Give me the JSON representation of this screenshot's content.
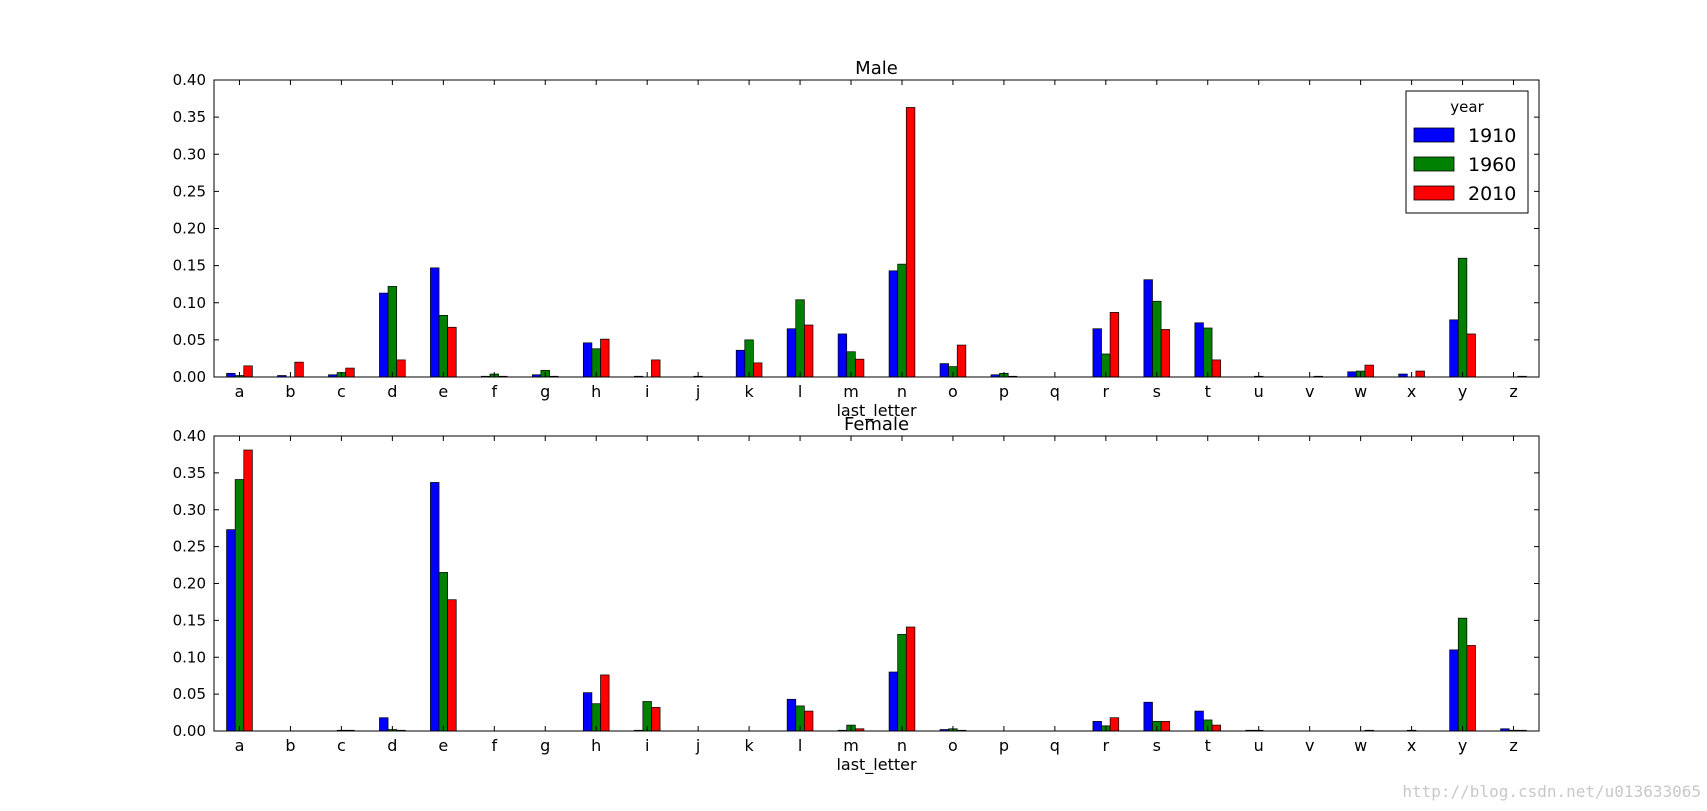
{
  "watermark": "http://blog.csdn.net/u013633065",
  "legend": {
    "title": "year",
    "placement": "upper right",
    "entries": [
      "1910",
      "1960",
      "2010"
    ]
  },
  "chart_data": [
    {
      "type": "bar",
      "title": "Male",
      "xlabel": "last_letter",
      "ylabel": "",
      "ylim": [
        0,
        0.4
      ],
      "yticks": [
        "0.00",
        "0.05",
        "0.10",
        "0.15",
        "0.20",
        "0.25",
        "0.30",
        "0.35",
        "0.40"
      ],
      "grid": false,
      "categories": [
        "a",
        "b",
        "c",
        "d",
        "e",
        "f",
        "g",
        "h",
        "i",
        "j",
        "k",
        "l",
        "m",
        "n",
        "o",
        "p",
        "q",
        "r",
        "s",
        "t",
        "u",
        "v",
        "w",
        "x",
        "y",
        "z"
      ],
      "series": [
        {
          "name": "1910",
          "color": "#0000ff",
          "values": [
            0.005,
            0.002,
            0.003,
            0.113,
            0.147,
            0.001,
            0.003,
            0.046,
            0.001,
            0.0,
            0.036,
            0.065,
            0.058,
            0.143,
            0.018,
            0.003,
            0.0,
            0.065,
            0.131,
            0.073,
            0.0,
            0.0,
            0.007,
            0.004,
            0.077,
            0.0
          ]
        },
        {
          "name": "1960",
          "color": "#008000",
          "values": [
            0.002,
            0.0,
            0.006,
            0.122,
            0.083,
            0.004,
            0.009,
            0.038,
            0.0,
            0.001,
            0.05,
            0.104,
            0.034,
            0.152,
            0.014,
            0.005,
            0.0,
            0.031,
            0.102,
            0.066,
            0.001,
            0.0,
            0.008,
            0.0,
            0.16,
            0.0
          ]
        },
        {
          "name": "2010",
          "color": "#ff0000",
          "values": [
            0.015,
            0.02,
            0.012,
            0.023,
            0.067,
            0.001,
            0.001,
            0.051,
            0.023,
            0.0,
            0.019,
            0.07,
            0.024,
            0.363,
            0.043,
            0.001,
            0.0,
            0.087,
            0.064,
            0.023,
            0.0,
            0.001,
            0.016,
            0.008,
            0.058,
            0.001
          ]
        }
      ]
    },
    {
      "type": "bar",
      "title": "Female",
      "xlabel": "last_letter",
      "ylabel": "",
      "ylim": [
        0,
        0.4
      ],
      "yticks": [
        "0.00",
        "0.05",
        "0.10",
        "0.15",
        "0.20",
        "0.25",
        "0.30",
        "0.35",
        "0.40"
      ],
      "grid": false,
      "categories": [
        "a",
        "b",
        "c",
        "d",
        "e",
        "f",
        "g",
        "h",
        "i",
        "j",
        "k",
        "l",
        "m",
        "n",
        "o",
        "p",
        "q",
        "r",
        "s",
        "t",
        "u",
        "v",
        "w",
        "x",
        "y",
        "z"
      ],
      "series": [
        {
          "name": "1910",
          "color": "#0000ff",
          "values": [
            0.273,
            0.0,
            0.0,
            0.018,
            0.337,
            0.0,
            0.0,
            0.052,
            0.001,
            0.0,
            0.0,
            0.043,
            0.001,
            0.08,
            0.002,
            0.0,
            0.0,
            0.013,
            0.039,
            0.027,
            0.001,
            0.0,
            0.0,
            0.0,
            0.11,
            0.003
          ]
        },
        {
          "name": "1960",
          "color": "#008000",
          "values": [
            0.341,
            0.0,
            0.001,
            0.002,
            0.215,
            0.0,
            0.0,
            0.037,
            0.04,
            0.0,
            0.0,
            0.034,
            0.008,
            0.131,
            0.003,
            0.0,
            0.0,
            0.007,
            0.013,
            0.015,
            0.001,
            0.0,
            0.0,
            0.001,
            0.153,
            0.001
          ]
        },
        {
          "name": "2010",
          "color": "#ff0000",
          "values": [
            0.381,
            0.0,
            0.001,
            0.001,
            0.178,
            0.0,
            0.0,
            0.076,
            0.032,
            0.0,
            0.0,
            0.027,
            0.003,
            0.141,
            0.001,
            0.0,
            0.0,
            0.018,
            0.013,
            0.008,
            0.0,
            0.0,
            0.001,
            0.0,
            0.116,
            0.001
          ]
        }
      ]
    }
  ]
}
